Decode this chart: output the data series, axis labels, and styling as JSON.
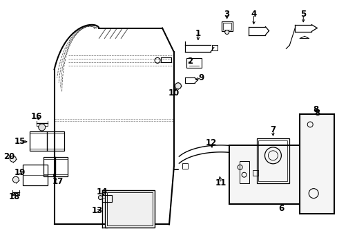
{
  "background_color": "#ffffff",
  "fig_width": 4.89,
  "fig_height": 3.6,
  "dpi": 100,
  "line_color": "#000000",
  "label_fontsize": 8.5,
  "label_fontsize_sm": 7.0
}
